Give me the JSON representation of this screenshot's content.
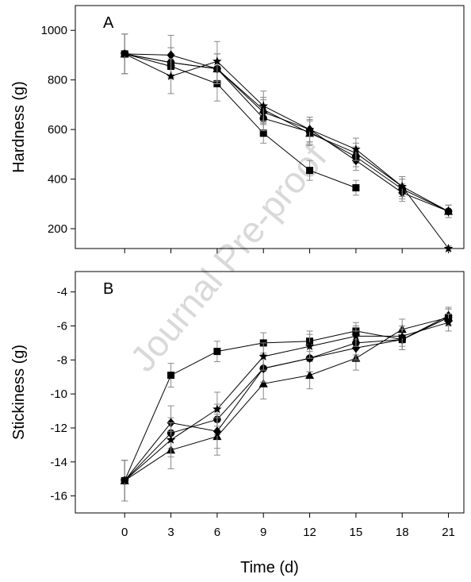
{
  "watermark": "Journal Pre-proof",
  "colors": {
    "ink": "#000000",
    "errorbar": "#8a8a8a",
    "watermark": "#d9d9d9"
  },
  "shared_x": {
    "label": "Time (d)",
    "ticks": [
      0,
      3,
      6,
      9,
      12,
      15,
      18,
      21
    ],
    "range": [
      -3.2,
      22
    ]
  },
  "chart_data": [
    {
      "type": "line",
      "panel": "A",
      "ylabel": "Hardness (g)",
      "ylim": [
        120,
        1100
      ],
      "yticks": [
        200,
        400,
        600,
        800,
        1000
      ],
      "x": [
        0,
        3,
        6,
        9,
        12,
        15,
        18,
        21
      ],
      "series": [
        {
          "marker": "square",
          "values": [
            905,
            855,
            785,
            585,
            435,
            365,
            null,
            null
          ],
          "errors": [
            80,
            50,
            70,
            40,
            40,
            30,
            null,
            null
          ]
        },
        {
          "marker": "circle",
          "values": [
            905,
            870,
            845,
            645,
            590,
            490,
            360,
            270
          ],
          "errors": [
            80,
            60,
            60,
            50,
            50,
            40,
            40,
            25
          ]
        },
        {
          "marker": "triangle",
          "values": [
            905,
            870,
            845,
            680,
            585,
            505,
            370,
            270
          ],
          "errors": [
            80,
            60,
            60,
            50,
            50,
            40,
            40,
            25
          ]
        },
        {
          "marker": "diamond",
          "values": [
            905,
            900,
            845,
            670,
            600,
            475,
            345,
            270
          ],
          "errors": [
            80,
            80,
            60,
            50,
            50,
            40,
            35,
            25
          ]
        },
        {
          "marker": "star",
          "values": [
            905,
            815,
            875,
            695,
            600,
            520,
            370,
            120
          ],
          "errors": [
            80,
            70,
            80,
            60,
            50,
            45,
            40,
            10
          ]
        }
      ]
    },
    {
      "type": "line",
      "panel": "B",
      "ylabel": "Stickiness (g)",
      "ylim": [
        -17,
        -2.8
      ],
      "yticks": [
        -16,
        -14,
        -12,
        -10,
        -8,
        -6,
        -4
      ],
      "x": [
        0,
        3,
        6,
        9,
        12,
        15,
        18,
        21
      ],
      "series": [
        {
          "marker": "square",
          "values": [
            -15.1,
            -8.9,
            -7.5,
            -7.0,
            -6.9,
            -6.3,
            -6.8,
            -5.5
          ],
          "errors": [
            1.2,
            0.7,
            0.6,
            0.6,
            0.6,
            0.5,
            0.6,
            0.5
          ]
        },
        {
          "marker": "circle",
          "values": [
            -15.1,
            -12.3,
            -11.5,
            -8.5,
            -7.9,
            -7.0,
            -6.8,
            -5.5
          ],
          "errors": [
            1.2,
            0.9,
            0.9,
            0.8,
            0.8,
            0.7,
            0.6,
            0.5
          ]
        },
        {
          "marker": "triangle",
          "values": [
            -15.1,
            -13.3,
            -12.5,
            -9.4,
            -8.9,
            -7.9,
            -6.2,
            -5.5
          ],
          "errors": [
            1.2,
            1.1,
            1.1,
            0.9,
            0.8,
            0.7,
            0.6,
            0.5
          ]
        },
        {
          "marker": "diamond",
          "values": [
            -15.1,
            -11.7,
            -12.2,
            -8.5,
            -7.9,
            -7.3,
            -6.8,
            -5.4
          ],
          "errors": [
            1.2,
            1.0,
            1.0,
            0.8,
            0.8,
            0.7,
            0.6,
            0.5
          ]
        },
        {
          "marker": "star",
          "values": [
            -15.1,
            -12.7,
            -10.9,
            -7.8,
            -7.2,
            -6.6,
            -6.6,
            -5.8
          ],
          "errors": [
            1.2,
            1.0,
            1.0,
            0.8,
            0.7,
            0.6,
            0.6,
            0.5
          ]
        }
      ]
    }
  ]
}
